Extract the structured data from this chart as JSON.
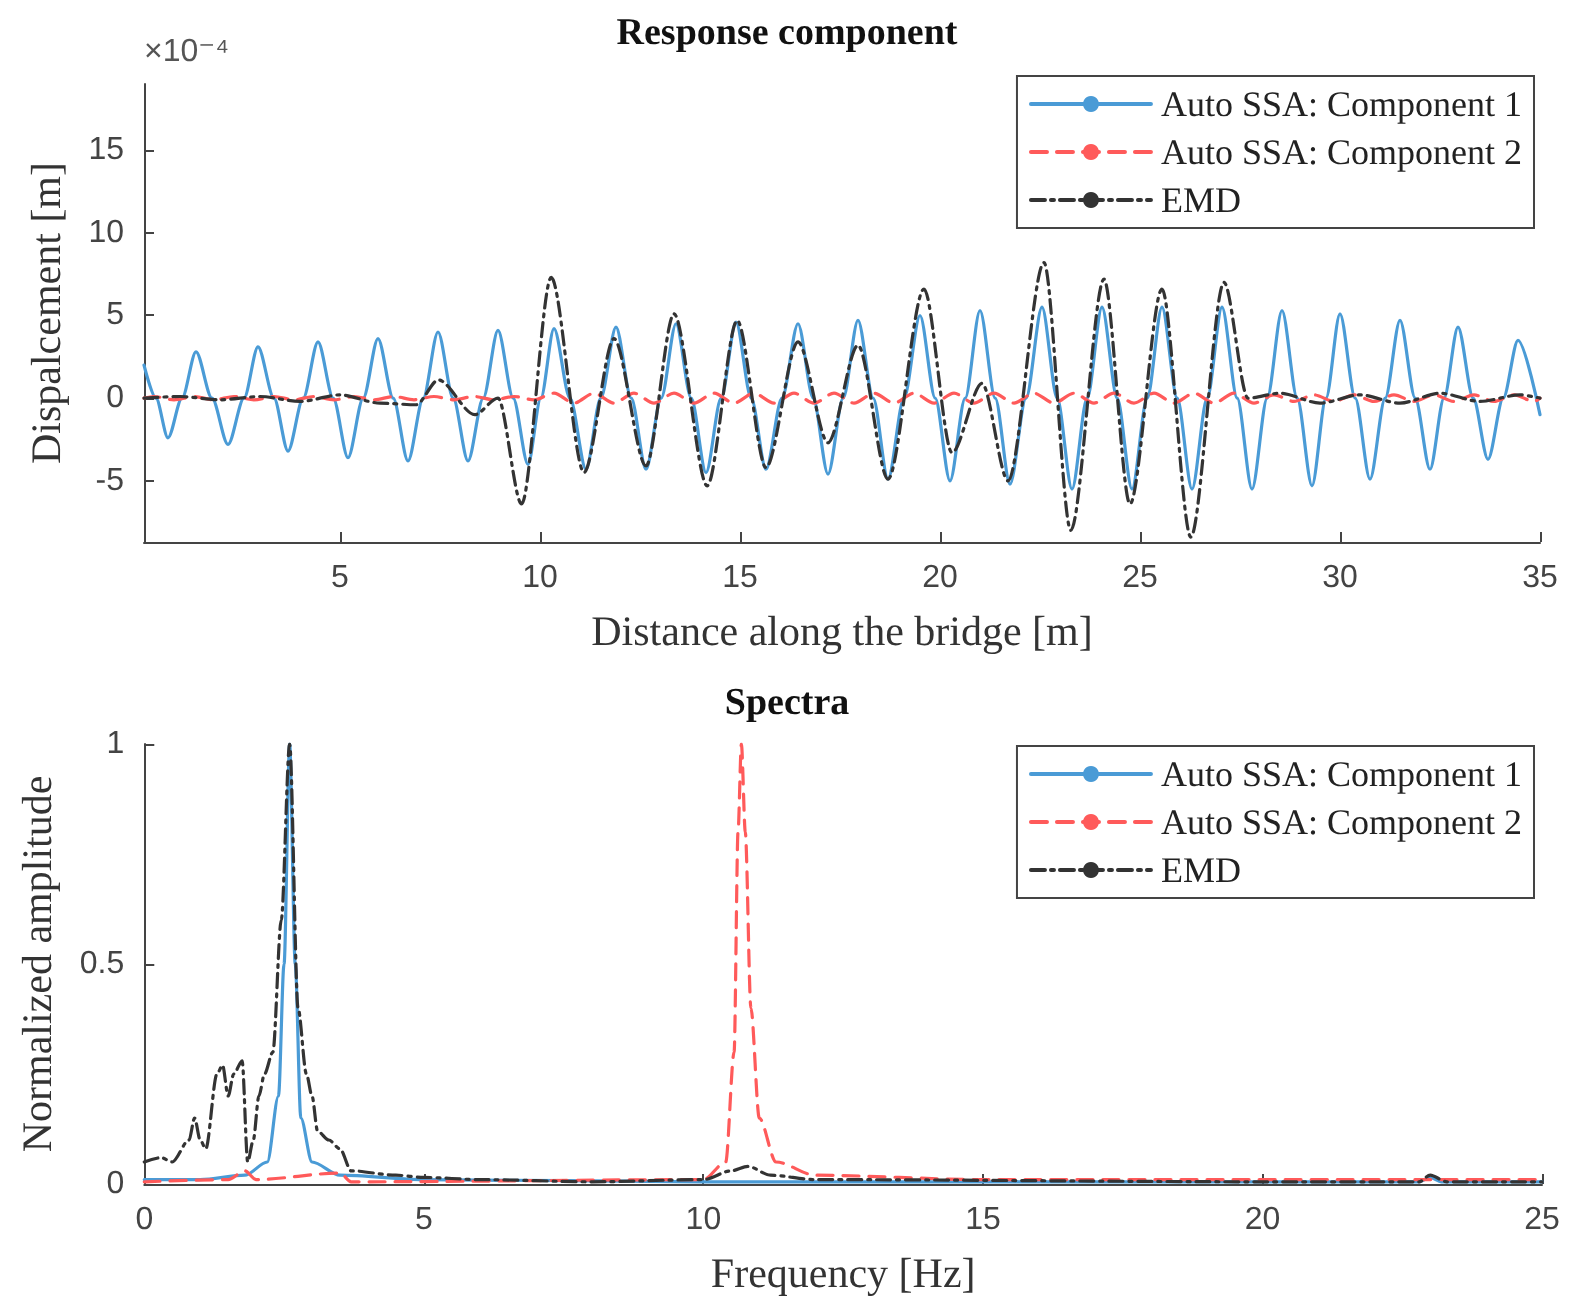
{
  "chart_data": [
    {
      "type": "line",
      "title": "Response component",
      "xlabel": "Distance along the bridge [m]",
      "ylabel": "Dispalcement [m]",
      "annotations": [
        "×10⁻⁴"
      ],
      "xlim": [
        0.1,
        35
      ],
      "xticks": [
        5,
        10,
        15,
        20,
        25,
        30,
        35
      ],
      "ylim": [
        -8.7,
        19
      ],
      "yticks": [
        -5,
        0,
        5,
        10,
        15
      ],
      "grid": false,
      "legend": "top right",
      "marker": "none",
      "series": [
        {
          "name": "Auto SSA: Component 1",
          "color": "#4a9bd6",
          "line_style": "solid",
          "x": [
            0.1,
            0.4,
            0.7,
            1.05,
            1.4,
            1.8,
            2.2,
            2.6,
            2.95,
            3.35,
            3.7,
            4.08,
            4.45,
            4.83,
            5.2,
            5.58,
            5.95,
            6.33,
            6.7,
            7.08,
            7.45,
            7.83,
            8.2,
            8.58,
            8.95,
            9.33,
            9.7,
            10.02,
            10.35,
            10.75,
            11.15,
            11.52,
            11.9,
            12.28,
            12.65,
            13.03,
            13.4,
            13.78,
            14.15,
            14.53,
            14.9,
            15.28,
            15.65,
            16.05,
            16.45,
            16.83,
            17.2,
            17.58,
            17.95,
            18.33,
            18.7,
            19.1,
            19.5,
            19.88,
            20.25,
            20.63,
            21.0,
            21.38,
            21.75,
            22.15,
            22.55,
            22.93,
            23.3,
            23.68,
            24.05,
            24.43,
            24.8,
            25.18,
            25.55,
            25.93,
            26.3,
            26.68,
            27.05,
            27.43,
            27.8,
            28.18,
            28.55,
            28.93,
            29.3,
            29.65,
            30.0,
            30.38,
            30.75,
            31.13,
            31.5,
            31.88,
            32.25,
            32.6,
            32.95,
            33.33,
            33.7,
            34.08,
            34.45,
            35.0
          ],
          "values": [
            2.0,
            0,
            -2.4,
            0,
            2.8,
            0,
            -2.8,
            0,
            3.1,
            0,
            -3.2,
            0,
            3.4,
            0,
            -3.6,
            0,
            3.6,
            0,
            -3.8,
            0,
            4.0,
            0,
            -3.8,
            0,
            4.1,
            0,
            -4.0,
            0,
            4.2,
            0,
            -4.3,
            0,
            4.3,
            0,
            -4.3,
            0,
            4.5,
            0,
            -4.5,
            0,
            4.6,
            0,
            -4.3,
            0,
            4.5,
            0,
            -4.6,
            0,
            4.7,
            0,
            -4.9,
            0,
            5.0,
            0,
            -5.0,
            0,
            5.3,
            0,
            -5.2,
            0,
            5.5,
            0,
            -5.5,
            0,
            5.5,
            0,
            -5.5,
            0,
            5.5,
            0,
            -5.5,
            0,
            5.5,
            0,
            -5.5,
            0,
            5.3,
            0,
            -5.3,
            0,
            5.1,
            0,
            -4.9,
            0,
            4.7,
            0,
            -4.3,
            0,
            4.3,
            0,
            -3.7,
            0,
            3.5,
            -1.0
          ]
        },
        {
          "name": "Auto SSA: Component 2",
          "color": "#ff5a5a",
          "line_style": "dashed",
          "x": [
            0.1,
            0.35,
            0.85,
            1.35,
            1.85,
            2.35,
            2.85,
            3.35,
            3.85,
            4.35,
            4.85,
            5.35,
            5.85,
            6.35,
            6.85,
            7.35,
            7.85,
            8.35,
            8.85,
            9.35,
            9.85,
            10.35,
            10.85,
            11.35,
            11.85,
            12.35,
            12.85,
            13.35,
            13.85,
            14.35,
            14.85,
            15.35,
            15.85,
            16.35,
            16.85,
            17.35,
            17.85,
            18.35,
            18.85,
            19.35,
            19.85,
            20.35,
            20.85,
            21.35,
            21.85,
            22.35,
            22.85,
            23.35,
            23.85,
            24.35,
            24.85,
            25.35,
            25.85,
            26.35,
            26.85,
            27.35,
            27.85,
            28.35,
            28.85,
            29.35,
            29.85,
            30.35,
            30.85,
            31.35,
            31.85,
            32.35,
            32.85,
            33.35,
            33.85,
            34.35,
            34.85,
            35.0
          ],
          "values": [
            0,
            0.1,
            -0.1,
            0.1,
            -0.1,
            0.1,
            -0.1,
            0.1,
            -0.1,
            0.1,
            -0.1,
            0.1,
            -0.1,
            0.1,
            -0.1,
            0.1,
            -0.1,
            0.1,
            -0.1,
            0.1,
            -0.1,
            0.3,
            -0.3,
            0.3,
            -0.3,
            0.3,
            -0.3,
            0.3,
            -0.3,
            0.3,
            -0.3,
            0.3,
            -0.3,
            0.3,
            -0.3,
            0.3,
            -0.3,
            0.3,
            -0.3,
            0.3,
            -0.3,
            0.3,
            -0.3,
            0.3,
            -0.3,
            0.3,
            -0.3,
            0.3,
            -0.3,
            0.3,
            -0.3,
            0.3,
            -0.3,
            0.3,
            -0.3,
            0.3,
            -0.3,
            0.2,
            -0.2,
            0.2,
            -0.2,
            0.2,
            -0.2,
            0.2,
            -0.2,
            0.2,
            -0.2,
            0.2,
            -0.2,
            0.2,
            -0.2,
            0
          ]
        },
        {
          "name": "EMD",
          "color": "#333333",
          "line_style": "dashdot",
          "x": [
            0.1,
            1,
            2,
            3,
            4,
            5,
            6,
            6.9,
            7.46,
            8.37,
            8.95,
            9.54,
            10.28,
            11.1,
            11.85,
            12.65,
            13.35,
            14.18,
            14.93,
            15.65,
            16.45,
            17.2,
            17.95,
            18.7,
            19.6,
            20.3,
            21.05,
            21.7,
            22.6,
            23.27,
            24.1,
            24.75,
            25.55,
            26.27,
            27.1,
            27.7,
            28.5,
            29.5,
            30.5,
            31.5,
            32.5,
            33.5,
            34.5,
            35
          ],
          "values": [
            0,
            0.1,
            -0.1,
            0.1,
            -0.2,
            0.2,
            -0.3,
            -0.4,
            1.1,
            -1.0,
            0,
            -6.4,
            7.3,
            -4.5,
            3.6,
            -4.1,
            5.1,
            -5.3,
            4.7,
            -4.2,
            3.4,
            -2.7,
            3.2,
            -4.9,
            6.6,
            -3.3,
            0.9,
            -5.0,
            8.2,
            -8.0,
            7.2,
            -6.4,
            6.6,
            -8.4,
            7.0,
            0,
            0.3,
            -0.3,
            0.2,
            -0.3,
            0.3,
            -0.2,
            0.2,
            0
          ]
        }
      ]
    },
    {
      "type": "line",
      "title": "Spectra",
      "xlabel": "Frequency [Hz]",
      "ylabel": "Normalized amplitude",
      "xlim": [
        0,
        25
      ],
      "xticks": [
        0,
        5,
        10,
        15,
        20,
        25
      ],
      "ylim": [
        0,
        1
      ],
      "yticks": [
        0,
        0.5,
        1
      ],
      "grid": false,
      "legend": "top right",
      "marker": "none",
      "series": [
        {
          "name": "Auto SSA: Component 1",
          "color": "#4a9bd6",
          "line_style": "solid",
          "x": [
            0,
            1,
            1.8,
            2.2,
            2.4,
            2.5,
            2.6,
            2.7,
            2.8,
            3.0,
            3.5,
            5,
            10,
            15,
            22.8,
            23,
            23.2,
            25
          ],
          "values": [
            0.01,
            0.01,
            0.02,
            0.05,
            0.2,
            0.5,
            1,
            0.5,
            0.15,
            0.05,
            0.02,
            0.01,
            0.005,
            0.005,
            0.005,
            0.015,
            0.005,
            0.005
          ]
        },
        {
          "name": "Auto SSA: Component 2",
          "color": "#ff5a5a",
          "line_style": "dashed",
          "x": [
            0,
            1.5,
            1.8,
            2.0,
            3.5,
            3.7,
            10,
            10.4,
            10.55,
            10.62,
            10.68,
            10.75,
            10.85,
            11.0,
            11.3,
            12,
            15,
            22.5,
            25
          ],
          "values": [
            0.005,
            0.01,
            0.03,
            0.01,
            0.025,
            0.005,
            0.01,
            0.05,
            0.3,
            0.8,
            1,
            0.8,
            0.4,
            0.15,
            0.05,
            0.02,
            0.01,
            0.01,
            0.01
          ]
        },
        {
          "name": "EMD",
          "color": "#333333",
          "line_style": "dashdot",
          "x": [
            0,
            0.3,
            0.5,
            0.8,
            0.9,
            1.0,
            1.1,
            1.3,
            1.4,
            1.5,
            1.6,
            1.75,
            1.85,
            1.95,
            2.05,
            2.15,
            2.3,
            2.45,
            2.6,
            2.75,
            2.9,
            3.0,
            3.1,
            3.3,
            3.5,
            3.7,
            4.5,
            5,
            6,
            8,
            10,
            10.5,
            10.8,
            11.2,
            12,
            20,
            22.8,
            23,
            23.3,
            25
          ],
          "values": [
            0.05,
            0.06,
            0.05,
            0.1,
            0.15,
            0.1,
            0.08,
            0.25,
            0.27,
            0.2,
            0.25,
            0.28,
            0.05,
            0.1,
            0.2,
            0.25,
            0.3,
            0.6,
            1,
            0.4,
            0.25,
            0.2,
            0.12,
            0.1,
            0.08,
            0.03,
            0.02,
            0.015,
            0.01,
            0.005,
            0.01,
            0.03,
            0.04,
            0.02,
            0.01,
            0.005,
            0.005,
            0.02,
            0.005,
            0.005
          ]
        }
      ]
    }
  ]
}
